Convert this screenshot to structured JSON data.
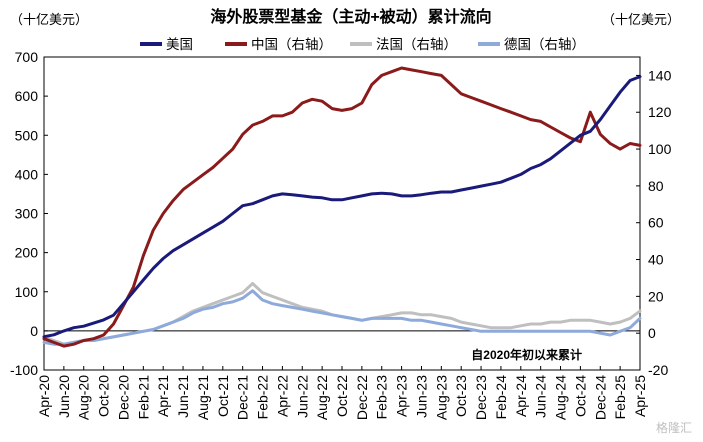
{
  "chart_data": {
    "type": "line",
    "title": "海外股票型基金（主动+被动）累计流向",
    "left_unit": "（十亿美元）",
    "right_unit": "（十亿美元）",
    "note": "自2020年初以来累计",
    "watermark": "格隆汇",
    "ylim_left": [
      -100,
      700
    ],
    "yticks_left": [
      -100,
      0,
      100,
      200,
      300,
      400,
      500,
      600,
      700
    ],
    "ylim_right": [
      -20,
      150
    ],
    "yticks_right": [
      -20,
      0,
      20,
      40,
      60,
      80,
      100,
      120,
      140
    ],
    "x_range": [
      "2020-04",
      "2025-04"
    ],
    "x_ticks": [
      "Apr-20",
      "Jun-20",
      "Aug-20",
      "Oct-20",
      "Dec-20",
      "Feb-21",
      "Apr-21",
      "Jun-21",
      "Aug-21",
      "Oct-21",
      "Dec-21",
      "Feb-22",
      "Apr-22",
      "Jun-22",
      "Aug-22",
      "Oct-22",
      "Dec-22",
      "Feb-23",
      "Apr-23",
      "Jun-23",
      "Aug-23",
      "Oct-23",
      "Dec-23",
      "Feb-24",
      "Apr-24",
      "Jun-24",
      "Aug-24",
      "Oct-24",
      "Dec-24",
      "Feb-25",
      "Apr-25"
    ],
    "x_tick_months": [
      0,
      2,
      4,
      6,
      8,
      10,
      12,
      14,
      16,
      18,
      20,
      22,
      24,
      26,
      28,
      30,
      32,
      34,
      36,
      38,
      40,
      42,
      44,
      46,
      48,
      50,
      52,
      54,
      56,
      58,
      60
    ],
    "legend_position": "top",
    "series": [
      {
        "name": "美国",
        "axis": "left",
        "color": "#1a1a7a",
        "x": [
          0,
          1,
          2,
          3,
          4,
          5,
          6,
          7,
          8,
          9,
          10,
          11,
          12,
          13,
          14,
          15,
          16,
          17,
          18,
          19,
          20,
          21,
          22,
          23,
          24,
          25,
          26,
          27,
          28,
          29,
          30,
          31,
          32,
          33,
          34,
          35,
          36,
          37,
          38,
          39,
          40,
          41,
          42,
          43,
          44,
          45,
          46,
          47,
          48,
          49,
          50,
          51,
          52,
          53,
          54,
          55,
          56,
          57,
          58,
          59,
          60
        ],
        "y": [
          -15,
          -10,
          0,
          8,
          12,
          20,
          28,
          40,
          70,
          100,
          130,
          160,
          185,
          205,
          220,
          235,
          250,
          265,
          280,
          300,
          320,
          325,
          335,
          345,
          350,
          348,
          345,
          342,
          340,
          335,
          335,
          340,
          345,
          350,
          352,
          350,
          345,
          345,
          348,
          352,
          355,
          355,
          360,
          365,
          370,
          375,
          380,
          390,
          400,
          415,
          425,
          440,
          460,
          480,
          500,
          510,
          540,
          575,
          610,
          640,
          650
        ]
      },
      {
        "name": "中国（右轴）",
        "axis": "right",
        "color": "#8b1a1a",
        "x": [
          0,
          1,
          2,
          3,
          4,
          5,
          6,
          7,
          8,
          9,
          10,
          11,
          12,
          13,
          14,
          15,
          16,
          17,
          18,
          19,
          20,
          21,
          22,
          23,
          24,
          25,
          26,
          27,
          28,
          29,
          30,
          31,
          32,
          33,
          34,
          35,
          36,
          37,
          38,
          39,
          40,
          41,
          42,
          43,
          44,
          45,
          46,
          47,
          48,
          49,
          50,
          51,
          52,
          53,
          54,
          55,
          56,
          57,
          58,
          59,
          60
        ],
        "y": [
          -3,
          -5,
          -7,
          -6,
          -4,
          -3,
          -1,
          5,
          15,
          25,
          42,
          56,
          65,
          72,
          78,
          82,
          86,
          90,
          95,
          100,
          108,
          113,
          115,
          118,
          118,
          120,
          125,
          127,
          126,
          122,
          121,
          122,
          125,
          135,
          140,
          142,
          144,
          143,
          142,
          141,
          140,
          135,
          130,
          128,
          126,
          124,
          122,
          120,
          118,
          116,
          115,
          112,
          109,
          106,
          104,
          120,
          108,
          103,
          100,
          103,
          102
        ]
      },
      {
        "name": "法国（右轴）",
        "axis": "right",
        "color": "#bfbfbf",
        "x": [
          0,
          1,
          2,
          3,
          4,
          5,
          6,
          7,
          8,
          9,
          10,
          11,
          12,
          13,
          14,
          15,
          16,
          17,
          18,
          19,
          20,
          21,
          22,
          23,
          24,
          25,
          26,
          27,
          28,
          29,
          30,
          31,
          32,
          33,
          34,
          35,
          36,
          37,
          38,
          39,
          40,
          41,
          42,
          43,
          44,
          45,
          46,
          47,
          48,
          49,
          50,
          51,
          52,
          53,
          54,
          55,
          56,
          57,
          58,
          59,
          60
        ],
        "y": [
          -2,
          -4,
          -6,
          -5,
          -4,
          -4,
          -3,
          -2,
          -1,
          0,
          1,
          2,
          4,
          6,
          9,
          12,
          14,
          16,
          18,
          20,
          22,
          27,
          22,
          20,
          18,
          16,
          14,
          13,
          12,
          10,
          9,
          8,
          7,
          8,
          9,
          10,
          11,
          11,
          10,
          10,
          9,
          8,
          6,
          5,
          4,
          3,
          3,
          3,
          4,
          5,
          5,
          6,
          6,
          7,
          7,
          7,
          6,
          5,
          6,
          8,
          12
        ]
      },
      {
        "name": "德国（右轴）",
        "axis": "right",
        "color": "#8eaadb",
        "x": [
          0,
          1,
          2,
          3,
          4,
          5,
          6,
          7,
          8,
          9,
          10,
          11,
          12,
          13,
          14,
          15,
          16,
          17,
          18,
          19,
          20,
          21,
          22,
          23,
          24,
          25,
          26,
          27,
          28,
          29,
          30,
          31,
          32,
          33,
          34,
          35,
          36,
          37,
          38,
          39,
          40,
          41,
          42,
          43,
          44,
          45,
          46,
          47,
          48,
          49,
          50,
          51,
          52,
          53,
          54,
          55,
          56,
          57,
          58,
          59,
          60
        ],
        "y": [
          -5,
          -6,
          -6,
          -5,
          -4,
          -4,
          -3,
          -2,
          -1,
          0,
          1,
          2,
          4,
          6,
          8,
          11,
          13,
          14,
          16,
          17,
          19,
          23,
          18,
          16,
          15,
          14,
          13,
          12,
          11,
          10,
          9,
          8,
          7,
          8,
          8,
          8,
          8,
          7,
          7,
          6,
          5,
          4,
          3,
          2,
          1,
          1,
          1,
          1,
          1,
          1,
          1,
          1,
          1,
          1,
          1,
          1,
          0,
          -1,
          1,
          3,
          8
        ]
      }
    ]
  }
}
